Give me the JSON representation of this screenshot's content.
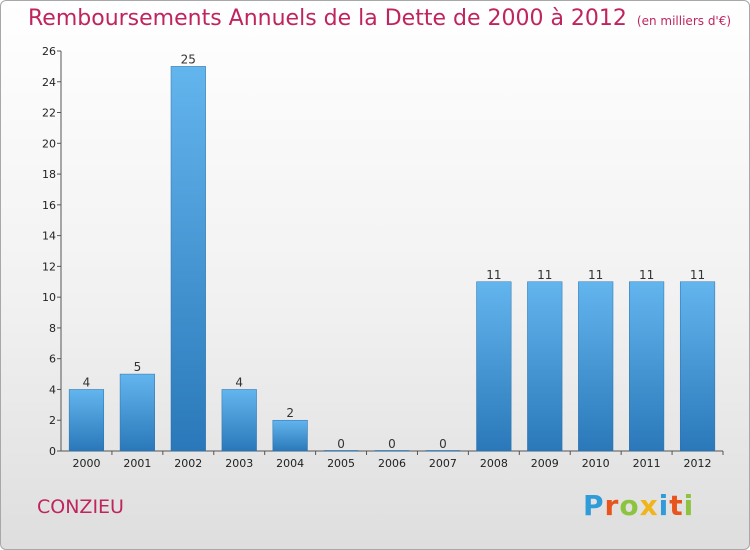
{
  "title": "Remboursements Annuels de la Dette de 2000 à 2012",
  "unit": "(en milliers d'€)",
  "commune": "CONZIEU",
  "logo": {
    "text": "Proxiti",
    "letters": [
      {
        "c": "P",
        "color": "#2f9bd8"
      },
      {
        "c": "r",
        "color": "#e8541b"
      },
      {
        "c": "o",
        "color": "#8cc43f"
      },
      {
        "c": "x",
        "color": "#f0b51b"
      },
      {
        "c": "i",
        "color": "#2f9bd8"
      },
      {
        "c": "t",
        "color": "#e8541b"
      },
      {
        "c": "i",
        "color": "#8cc43f"
      }
    ]
  },
  "chart_data": {
    "type": "bar",
    "categories": [
      "2000",
      "2001",
      "2002",
      "2003",
      "2004",
      "2005",
      "2006",
      "2007",
      "2008",
      "2009",
      "2010",
      "2011",
      "2012"
    ],
    "values": [
      4,
      5,
      25,
      4,
      2,
      0,
      0,
      0,
      11,
      11,
      11,
      11,
      11
    ],
    "ylim": [
      0,
      26
    ],
    "yticks": [
      0,
      2,
      4,
      6,
      8,
      10,
      12,
      14,
      16,
      18,
      20,
      22,
      24,
      26
    ],
    "xlabel": "",
    "ylabel": "",
    "grid": false,
    "bar_color": "#3b95d8"
  }
}
